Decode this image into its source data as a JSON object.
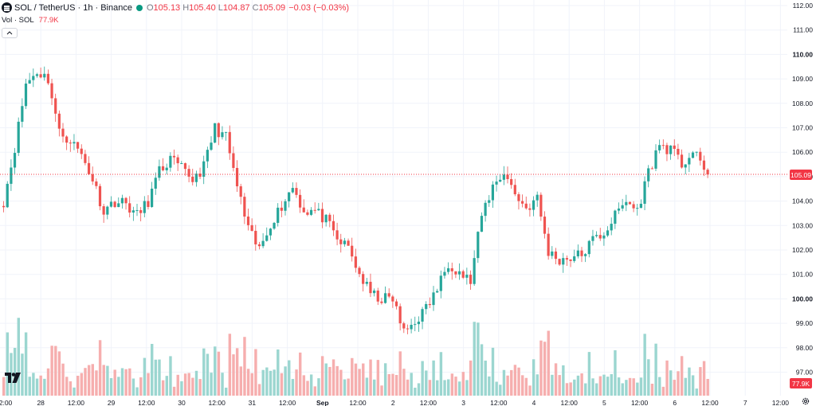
{
  "legend": {
    "symbol": "SOL / TetherUS · 1h · Binance",
    "open_label": "O",
    "open": "105.13",
    "high_label": "H",
    "high": "105.40",
    "low_label": "L",
    "low": "104.87",
    "close_label": "C",
    "close": "105.09",
    "change": "−0.03 (−0.03%)",
    "status_color": "#089981"
  },
  "volume_legend": {
    "label": "Vol · SOL",
    "value": "77.9K"
  },
  "price_axis": {
    "ticks": [
      "112.00",
      "111.00",
      "110.00",
      "109.00",
      "108.00",
      "107.00",
      "106.00",
      "105.00",
      "104.00",
      "103.00",
      "102.00",
      "101.00",
      "100.00",
      "99.00",
      "98.00",
      "97.00"
    ],
    "bold_ticks": [
      "110.00",
      "100.00"
    ]
  },
  "current_price_tag": "105.09",
  "volume_tag": "77.9K",
  "time_axis": {
    "labels": [
      "2:00",
      "28",
      "12:00",
      "29",
      "12:00",
      "30",
      "12:00",
      "31",
      "12:00",
      "Sep",
      "12:00",
      "2",
      "12:00",
      "3",
      "12:00",
      "4",
      "12:00",
      "5",
      "12:00",
      "6",
      "12:00",
      "7",
      "12:00"
    ],
    "bold_labels": [
      "Sep"
    ]
  },
  "colors": {
    "up": "#26a69a",
    "down": "#ef5350",
    "up_vol": "#9bd6d0",
    "down_vol": "#f6aeae",
    "grid": "#f0f3fa",
    "axis_text": "#131722"
  },
  "icons": {
    "collapse": "chevron-up-icon",
    "logo": "tradingview-logo-icon",
    "settings": "gear-icon"
  },
  "chart_data": {
    "type": "candlestick",
    "interval": "1h",
    "symbol": "SOL/USDT",
    "ylim": [
      96.6,
      112.2
    ],
    "close_path_anchors": [
      [
        0,
        104.0
      ],
      [
        3,
        106.2
      ],
      [
        6,
        108.8
      ],
      [
        9,
        109.3
      ],
      [
        12,
        109.0
      ],
      [
        15,
        106.8
      ],
      [
        18,
        106.5
      ],
      [
        21,
        105.9
      ],
      [
        24,
        104.9
      ],
      [
        27,
        103.6
      ],
      [
        30,
        104.0
      ],
      [
        33,
        103.9
      ],
      [
        36,
        103.4
      ],
      [
        39,
        104.0
      ],
      [
        42,
        105.2
      ],
      [
        45,
        105.7
      ],
      [
        48,
        105.3
      ],
      [
        51,
        104.9
      ],
      [
        54,
        105.4
      ],
      [
        57,
        107.0
      ],
      [
        60,
        106.6
      ],
      [
        63,
        104.6
      ],
      [
        66,
        102.8
      ],
      [
        69,
        102.0
      ],
      [
        72,
        103.1
      ],
      [
        75,
        103.8
      ],
      [
        78,
        104.6
      ],
      [
        81,
        103.6
      ],
      [
        84,
        103.6
      ],
      [
        87,
        103.2
      ],
      [
        90,
        102.4
      ],
      [
        93,
        102.1
      ],
      [
        96,
        101.0
      ],
      [
        99,
        100.2
      ],
      [
        102,
        100.0
      ],
      [
        105,
        100.0
      ],
      [
        108,
        98.6
      ],
      [
        111,
        99.1
      ],
      [
        114,
        99.6
      ],
      [
        117,
        100.4
      ],
      [
        120,
        101.5
      ],
      [
        123,
        101.1
      ],
      [
        126,
        100.7
      ],
      [
        129,
        103.4
      ],
      [
        132,
        104.6
      ],
      [
        135,
        105.2
      ],
      [
        138,
        104.3
      ],
      [
        141,
        103.7
      ],
      [
        144,
        104.1
      ],
      [
        147,
        101.9
      ],
      [
        150,
        101.6
      ],
      [
        153,
        101.7
      ],
      [
        156,
        101.8
      ],
      [
        159,
        102.4
      ],
      [
        162,
        102.7
      ],
      [
        165,
        103.4
      ],
      [
        168,
        104.0
      ],
      [
        171,
        103.6
      ],
      [
        174,
        105.2
      ],
      [
        177,
        106.3
      ],
      [
        180,
        106.1
      ],
      [
        183,
        105.5
      ],
      [
        186,
        106.0
      ],
      [
        189,
        105.3
      ],
      [
        190,
        105.09
      ]
    ]
  }
}
